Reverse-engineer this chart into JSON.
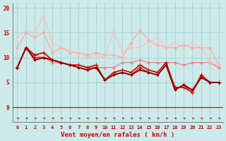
{
  "background_color": "#cceaea",
  "grid_color": "#aad4d4",
  "x_label": "Vent moyen/en rafales ( km/h )",
  "x_ticks": [
    0,
    1,
    2,
    3,
    4,
    5,
    6,
    7,
    8,
    9,
    10,
    11,
    12,
    13,
    14,
    15,
    16,
    17,
    18,
    19,
    20,
    21,
    22,
    23
  ],
  "ylim": [
    -3,
    21
  ],
  "xlim": [
    -0.5,
    23.5
  ],
  "y_ticks": [
    0,
    5,
    10,
    15,
    20
  ],
  "series": [
    {
      "x": [
        0,
        1,
        2,
        3,
        4,
        5,
        6,
        7,
        8,
        9,
        10,
        11,
        12,
        13,
        14,
        15,
        16,
        17,
        18,
        19,
        20,
        21,
        22,
        23
      ],
      "y": [
        8,
        12,
        10.5,
        10,
        9,
        9,
        8.5,
        8.5,
        8,
        8,
        8,
        8,
        9,
        9,
        9.5,
        9,
        9,
        9,
        9,
        8.5,
        9,
        9,
        9,
        8
      ],
      "color": "#ee8888",
      "lw": 1.0,
      "marker": "D",
      "ms": 2.0
    },
    {
      "x": [
        0,
        1,
        2,
        3,
        4,
        5,
        6,
        7,
        8,
        9,
        10,
        11,
        12,
        13,
        14,
        15,
        16,
        17,
        18,
        19,
        20,
        21,
        22,
        23
      ],
      "y": [
        12,
        15,
        14,
        15,
        11,
        12,
        11,
        11,
        10.5,
        11,
        10.5,
        10.5,
        10,
        13,
        15.5,
        13.5,
        12.5,
        12,
        12,
        12.5,
        12,
        12,
        12,
        8.5
      ],
      "color": "#ffaaaa",
      "lw": 1.0,
      "marker": "D",
      "ms": 2.0
    },
    {
      "x": [
        0,
        1,
        2,
        3,
        4,
        5,
        6,
        7,
        8,
        9,
        10,
        11,
        12,
        13,
        14,
        15,
        16,
        17,
        18,
        19,
        20,
        21,
        22,
        23
      ],
      "y": [
        14,
        15.5,
        15,
        18.5,
        13,
        12,
        11.5,
        11,
        10,
        10.5,
        10,
        15.5,
        11,
        12,
        12,
        13,
        14,
        12,
        13,
        12,
        13,
        12,
        9,
        8.5
      ],
      "color": "#ffbbbb",
      "lw": 0.8,
      "marker": "+",
      "ms": 3.5
    },
    {
      "x": [
        0,
        1,
        2,
        3,
        4,
        5,
        6,
        7,
        8,
        9,
        10,
        11,
        12,
        13,
        14,
        15,
        16,
        17,
        18,
        19,
        20,
        21,
        22,
        23
      ],
      "y": [
        8,
        12,
        10.5,
        11,
        9.5,
        9,
        8.5,
        8.5,
        8,
        8.5,
        5.5,
        7,
        7.5,
        7,
        8.5,
        7.5,
        7,
        9,
        4,
        4,
        3,
        6.5,
        5,
        5
      ],
      "color": "#cc0000",
      "lw": 1.2,
      "marker": "+",
      "ms": 4
    },
    {
      "x": [
        0,
        1,
        2,
        3,
        4,
        5,
        6,
        7,
        8,
        9,
        10,
        11,
        12,
        13,
        14,
        15,
        16,
        17,
        18,
        19,
        20,
        21,
        22,
        23
      ],
      "y": [
        8,
        12,
        10,
        10,
        9.5,
        9,
        8.5,
        8,
        7.5,
        8,
        5.5,
        6.5,
        7,
        6.5,
        8,
        7,
        6.5,
        8.5,
        3.5,
        4.5,
        3,
        6,
        5,
        5
      ],
      "color": "#dd2222",
      "lw": 1.0,
      "marker": "D",
      "ms": 1.8
    },
    {
      "x": [
        0,
        1,
        2,
        3,
        4,
        5,
        6,
        7,
        8,
        9,
        10,
        11,
        12,
        13,
        14,
        15,
        16,
        17,
        18,
        19,
        20,
        21,
        22,
        23
      ],
      "y": [
        8,
        12,
        9.5,
        10,
        9.5,
        9,
        8.5,
        8,
        7.5,
        8,
        5.5,
        6.5,
        7,
        6.5,
        7.5,
        7,
        6.5,
        8.5,
        3.5,
        4.5,
        3.5,
        6,
        5,
        5
      ],
      "color": "#880000",
      "lw": 1.3,
      "marker": "s",
      "ms": 1.5
    }
  ],
  "arrow_color": "#cc0000",
  "axis_label_color": "#cc0000",
  "tick_color": "#cc0000",
  "spine_color": "#888888"
}
